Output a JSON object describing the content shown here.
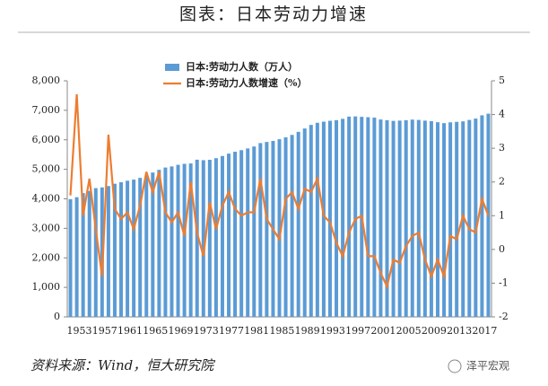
{
  "title": "图表：日本劳动力增速",
  "source": "资料来源：Wind，恒大研究院",
  "watermark": "泽平宏观",
  "chart_data": {
    "type": "bar-line",
    "categories": [
      "1953",
      null,
      null,
      null,
      "1957",
      null,
      null,
      null,
      "1961",
      null,
      null,
      null,
      "1965",
      null,
      null,
      null,
      "1969",
      null,
      null,
      null,
      "1973",
      null,
      null,
      null,
      "1977",
      null,
      null,
      null,
      "1981",
      null,
      null,
      null,
      "1985",
      null,
      null,
      null,
      "1989",
      null,
      null,
      null,
      "1993",
      null,
      null,
      null,
      "1997",
      null,
      null,
      null,
      "2001",
      null,
      null,
      null,
      "2005",
      null,
      null,
      null,
      "2009",
      null,
      null,
      null,
      "2013",
      null,
      null,
      null,
      "2017",
      null,
      null
    ],
    "series": [
      {
        "name": "日本:劳动力人数（万人）",
        "color": "#5b9bd5",
        "kind": "bar",
        "axis": "y",
        "values": [
          3989,
          4055,
          4194,
          4268,
          4363,
          4387,
          4433,
          4511,
          4562,
          4614,
          4652,
          4710,
          4787,
          4891,
          4983,
          5061,
          5098,
          5153,
          5186,
          5199,
          5326,
          5310,
          5323,
          5378,
          5452,
          5532,
          5596,
          5650,
          5707,
          5774,
          5889,
          5927,
          5963,
          6020,
          6084,
          6166,
          6270,
          6384,
          6505,
          6578,
          6615,
          6645,
          6666,
          6711,
          6787,
          6793,
          6779,
          6766,
          6752,
          6689,
          6666,
          6642,
          6651,
          6664,
          6684,
          6674,
          6650,
          6632,
          6596,
          6565,
          6593,
          6609,
          6625,
          6673,
          6720,
          6830,
          6886
        ]
      },
      {
        "name": "日本:劳动力人数增速（%）",
        "color": "#ed7d31",
        "kind": "line",
        "axis": "y2",
        "values": [
          1.6,
          4.6,
          1.0,
          2.1,
          0.6,
          -0.8,
          3.4,
          1.2,
          0.9,
          1.1,
          0.6,
          1.3,
          2.3,
          1.7,
          2.3,
          1.1,
          0.8,
          1.1,
          0.4,
          2.0,
          0.5,
          -0.2,
          1.4,
          0.6,
          1.3,
          1.7,
          1.2,
          1.0,
          1.1,
          1.1,
          2.1,
          0.9,
          0.6,
          0.3,
          1.5,
          1.7,
          1.2,
          1.8,
          1.7,
          2.1,
          1.0,
          0.8,
          0.2,
          -0.2,
          0.5,
          0.9,
          1.0,
          -0.2,
          -0.2,
          -0.7,
          -1.1,
          -0.3,
          -0.4,
          0.1,
          0.4,
          0.5,
          -0.3,
          -0.8,
          -0.3,
          -0.8,
          0.4,
          0.3,
          1.0,
          0.6,
          0.5,
          1.5,
          1.0
        ]
      }
    ],
    "ylim": [
      0,
      8000
    ],
    "yticks": [
      0,
      {
        "value": 1000,
        "label": "1,000"
      },
      {
        "value": 2000,
        "label": "2,000"
      },
      {
        "value": 3000,
        "label": "3,000"
      },
      {
        "value": 4000,
        "label": "4,000"
      },
      {
        "value": 5000,
        "label": "5,000"
      },
      {
        "value": 6000,
        "label": "6,000"
      },
      {
        "value": 7000,
        "label": "7,000"
      },
      {
        "value": 8000,
        "label": "8,000"
      }
    ],
    "y2lim": [
      -2,
      5
    ],
    "y2ticks": [
      -2,
      -1,
      0,
      1,
      2,
      3,
      4,
      5
    ],
    "grid": false
  }
}
